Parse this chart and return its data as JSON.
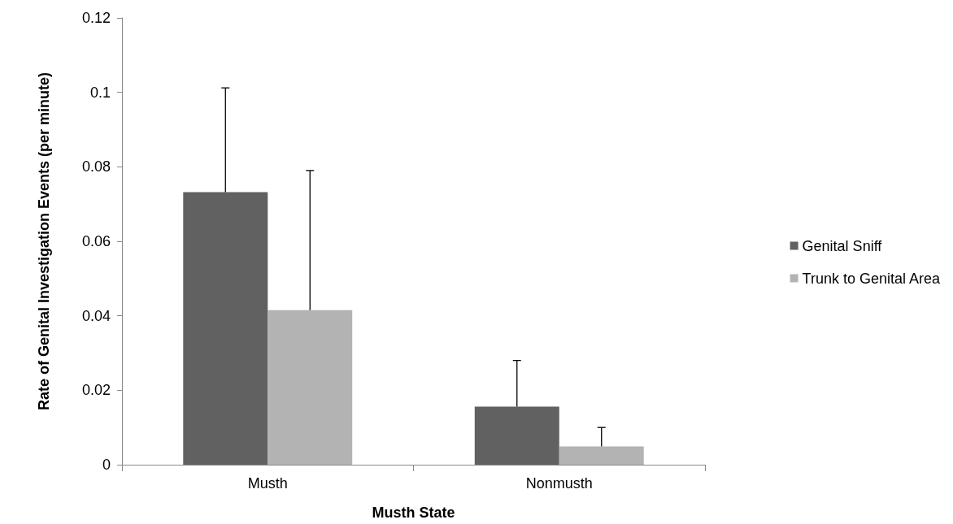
{
  "chart_data": {
    "type": "bar",
    "xlabel": "Musth State",
    "ylabel": "Rate of Genital Investigation Events (per minute)",
    "categories": [
      "Musth",
      "Nonmusth"
    ],
    "series": [
      {
        "name": "Genital Sniff",
        "color": "#616161",
        "values": [
          0.0732,
          0.0156
        ],
        "errors": [
          [
            0.0732,
            0.1012
          ],
          [
            0.0156,
            0.028
          ]
        ]
      },
      {
        "name": "Trunk to Genital Area",
        "color": "#b3b3b3",
        "values": [
          0.0415,
          0.0049
        ],
        "errors": [
          [
            0.0415,
            0.079
          ],
          [
            0.0049,
            0.01
          ]
        ]
      }
    ],
    "ylim": [
      0,
      0.12
    ],
    "yticks": [
      0,
      0.02,
      0.04,
      0.06,
      0.08,
      0.1,
      0.12
    ],
    "grid": false,
    "legend": "right"
  }
}
